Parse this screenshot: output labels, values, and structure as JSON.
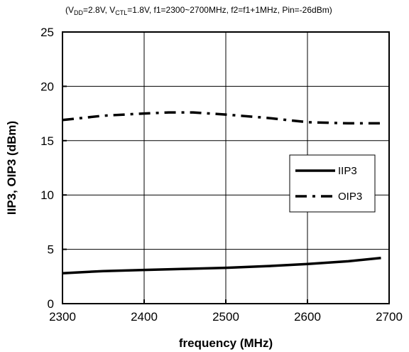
{
  "chart_data": {
    "type": "line",
    "subtitle_parts": [
      {
        "t": "(V",
        "sub": false
      },
      {
        "t": "DD",
        "sub": true
      },
      {
        "t": "=2.8V, V",
        "sub": false
      },
      {
        "t": "CTL",
        "sub": true
      },
      {
        "t": "=1.8V, f1=2300~2700MHz, f2=f1+1MHz, Pin=-26dBm)",
        "sub": false
      }
    ],
    "xlabel": "frequency (MHz)",
    "ylabel": "IIP3, OIP3 (dBm)",
    "xlim": [
      2300,
      2700
    ],
    "ylim": [
      0,
      25
    ],
    "xticks": [
      2300,
      2400,
      2500,
      2600,
      2700
    ],
    "yticks": [
      0,
      5,
      10,
      15,
      20,
      25
    ],
    "grid": true,
    "legend_position": "right",
    "series": [
      {
        "name": "IIP3",
        "style": "solid",
        "color": "#000000",
        "x": [
          2300,
          2350,
          2400,
          2450,
          2500,
          2550,
          2600,
          2650,
          2690
        ],
        "y": [
          2.8,
          3.0,
          3.1,
          3.2,
          3.3,
          3.45,
          3.65,
          3.9,
          4.2
        ]
      },
      {
        "name": "OIP3",
        "style": "dashdot",
        "color": "#000000",
        "x": [
          2300,
          2350,
          2400,
          2430,
          2460,
          2500,
          2550,
          2600,
          2650,
          2690
        ],
        "y": [
          16.9,
          17.3,
          17.5,
          17.6,
          17.6,
          17.4,
          17.1,
          16.7,
          16.6,
          16.6
        ]
      }
    ]
  }
}
